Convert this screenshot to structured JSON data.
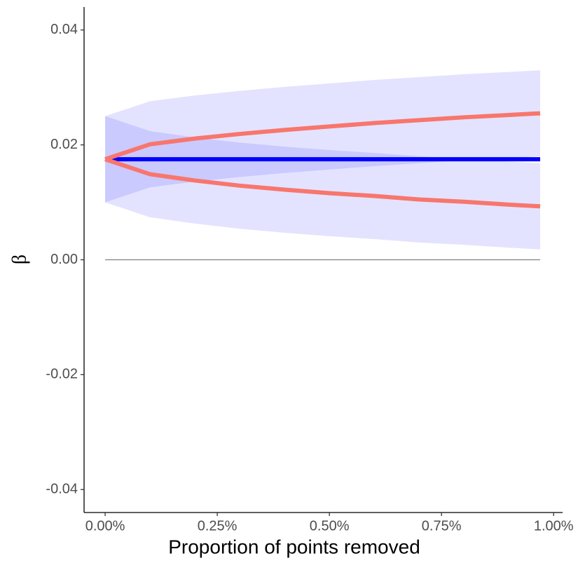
{
  "chart_data": {
    "type": "line",
    "xlabel": "Proportion of points removed",
    "ylabel": "β",
    "x": [
      0,
      0.1,
      0.2,
      0.3,
      0.4,
      0.5,
      0.6,
      0.7,
      0.8,
      0.9,
      0.97
    ],
    "xlim": [
      -0.047,
      1.02
    ],
    "xticks": [
      {
        "value": 0,
        "label": "0.00%"
      },
      {
        "value": 0.25,
        "label": "0.25%"
      },
      {
        "value": 0.5,
        "label": "0.50%"
      },
      {
        "value": 0.75,
        "label": "0.75%"
      },
      {
        "value": 1,
        "label": "1.00%"
      }
    ],
    "ylim": [
      -0.044,
      0.044
    ],
    "yticks": [
      {
        "value": -0.04,
        "label": "-0.04"
      },
      {
        "value": -0.02,
        "label": "-0.02"
      },
      {
        "value": 0,
        "label": "0.00"
      },
      {
        "value": 0.02,
        "label": "0.02"
      },
      {
        "value": 0.04,
        "label": "0.04"
      }
    ],
    "hline": {
      "value": 0,
      "color": "#808080"
    },
    "bands": [
      {
        "color": "#0000ff",
        "upper": [
          0.025,
          0.0276,
          0.0286,
          0.0294,
          0.0301,
          0.0307,
          0.0313,
          0.0318,
          0.0323,
          0.0327,
          0.033
        ],
        "lower": [
          0.01,
          0.0126,
          0.0136,
          0.0144,
          0.0151,
          0.0157,
          0.0163,
          0.0168,
          0.0173,
          0.0177,
          0.018
        ]
      },
      {
        "color": "#0000ff",
        "upper": [
          0.025,
          0.0224,
          0.0213,
          0.0204,
          0.0197,
          0.0191,
          0.0186,
          0.018,
          0.0176,
          0.0171,
          0.0168
        ],
        "lower": [
          0.01,
          0.0074,
          0.0063,
          0.0054,
          0.0047,
          0.0041,
          0.0036,
          0.003,
          0.0026,
          0.0021,
          0.0018
        ]
      }
    ],
    "series": [
      {
        "color": "#0000ff",
        "values": [
          0.0175,
          0.0175,
          0.0175,
          0.0175,
          0.0175,
          0.0175,
          0.0175,
          0.0175,
          0.0175,
          0.0175,
          0.0175
        ]
      },
      {
        "color": "#f8766d",
        "values": [
          0.0175,
          0.0201,
          0.0211,
          0.0219,
          0.0226,
          0.0232,
          0.0238,
          0.0243,
          0.0248,
          0.0252,
          0.0255
        ]
      },
      {
        "color": "#f8766d",
        "values": [
          0.0175,
          0.0149,
          0.0138,
          0.0129,
          0.0122,
          0.0116,
          0.0111,
          0.0105,
          0.0101,
          0.0096,
          0.0093
        ]
      }
    ]
  }
}
